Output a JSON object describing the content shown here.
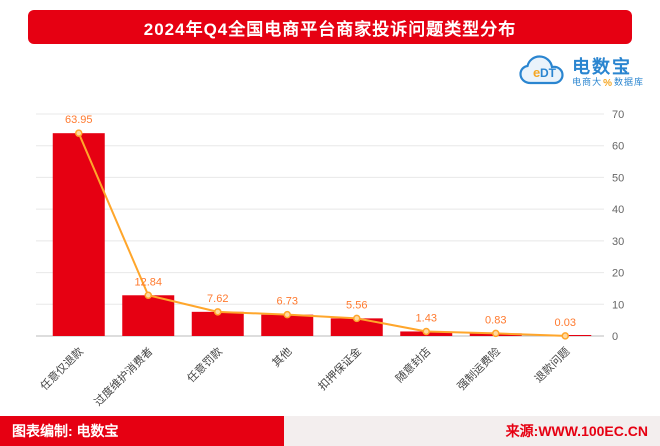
{
  "title": "2024年Q4全国电商平台商家投诉问题类型分布",
  "logo": {
    "abbr": "eDT",
    "brand": "电数宝",
    "tagline1": "电商大",
    "percent": "%",
    "tagline2": "数据库"
  },
  "footer": {
    "left": "图表编制: 电数宝",
    "right": "来源:WWW.100EC.CN"
  },
  "chart_data": {
    "type": "bar",
    "title": "2024年Q4全国电商平台商家投诉问题类型分布",
    "categories": [
      "任意仅退款",
      "过度维护消费者",
      "任意罚款",
      "其他",
      "扣押保证金",
      "随意封店",
      "强制运费险",
      "退款问题"
    ],
    "values": [
      63.95,
      12.84,
      7.62,
      6.73,
      5.56,
      1.43,
      0.83,
      0.03
    ],
    "overlay_line": true,
    "ylim": [
      0,
      70
    ],
    "yticks": [
      0,
      10,
      20,
      30,
      40,
      50,
      60,
      70
    ],
    "axis_side": "right",
    "grid": true,
    "legend_position": "none",
    "bar_color": "#e60012",
    "line_color": "#ffa62b",
    "value_label_color": "#ff7a2f",
    "axis_label_color": "#666666",
    "category_label_color": "#444444",
    "grid_color": "#e8e8e8",
    "baseline_color": "#bbbbbb"
  }
}
